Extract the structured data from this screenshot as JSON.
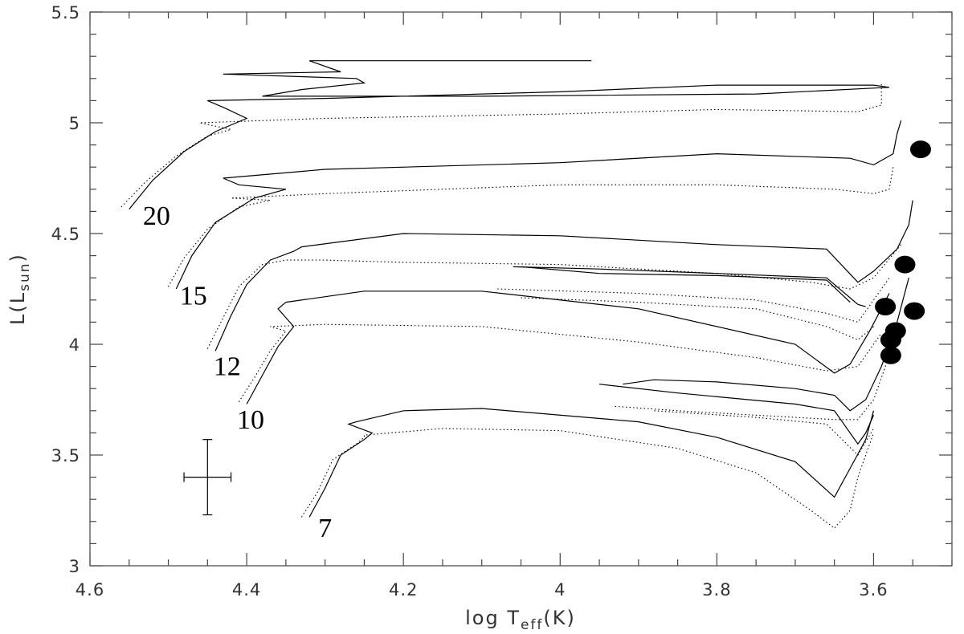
{
  "chart_data": {
    "type": "line",
    "title": "",
    "xlabel": {
      "prefix": "log T",
      "sub": "eff",
      "suffix": "(K)"
    },
    "ylabel": {
      "prefix": "L(L",
      "sub": "sun",
      "suffix": ")"
    },
    "xlim": [
      4.6,
      3.5
    ],
    "ylim": [
      3.0,
      5.5
    ],
    "x_ticks": [
      "4.6",
      "4.4",
      "4.2",
      "4",
      "3.8",
      "3.6"
    ],
    "y_ticks": [
      "3",
      "3.5",
      "4",
      "4.5",
      "5",
      "5.5"
    ],
    "grid": false,
    "legend": "none",
    "mass_labels": [
      {
        "text": "20",
        "x": 4.515,
        "y": 4.54
      },
      {
        "text": "15",
        "x": 4.468,
        "y": 4.18
      },
      {
        "text": "12",
        "x": 4.425,
        "y": 3.86
      },
      {
        "text": "10",
        "x": 4.395,
        "y": 3.62
      },
      {
        "text": "7",
        "x": 4.3,
        "y": 3.13
      }
    ],
    "error_bar": {
      "x": 4.45,
      "y": 3.4,
      "x_err": 0.03,
      "y_err": 0.17
    },
    "observed_stars": [
      {
        "x": 3.54,
        "y": 4.88
      },
      {
        "x": 3.56,
        "y": 4.36
      },
      {
        "x": 3.548,
        "y": 4.15
      },
      {
        "x": 3.585,
        "y": 4.17
      },
      {
        "x": 3.572,
        "y": 4.06
      },
      {
        "x": 3.578,
        "y": 4.02
      },
      {
        "x": 3.578,
        "y": 3.95
      }
    ],
    "series": [
      {
        "style": "solid",
        "points": [
          [
            4.55,
            4.61
          ],
          [
            4.52,
            4.74
          ],
          [
            4.48,
            4.87
          ],
          [
            4.44,
            4.96
          ],
          [
            4.4,
            5.02
          ],
          [
            4.43,
            5.07
          ],
          [
            4.45,
            5.1
          ],
          [
            4.3,
            5.11
          ],
          [
            4.0,
            5.14
          ],
          [
            3.8,
            5.17
          ],
          [
            3.6,
            5.17
          ],
          [
            3.58,
            5.16
          ],
          [
            3.75,
            5.13
          ],
          [
            4.1,
            5.12
          ],
          [
            4.38,
            5.12
          ],
          [
            4.33,
            5.15
          ],
          [
            4.25,
            5.18
          ],
          [
            4.26,
            5.2
          ],
          [
            4.43,
            5.22
          ],
          [
            4.28,
            5.23
          ],
          [
            4.32,
            5.28
          ],
          [
            4.2,
            5.28
          ],
          [
            3.96,
            5.28
          ]
        ]
      },
      {
        "style": "dotted",
        "points": [
          [
            4.56,
            4.62
          ],
          [
            4.53,
            4.73
          ],
          [
            4.49,
            4.85
          ],
          [
            4.45,
            4.94
          ],
          [
            4.42,
            4.97
          ],
          [
            4.46,
            5.0
          ],
          [
            4.3,
            5.02
          ],
          [
            4.0,
            5.04
          ],
          [
            3.8,
            5.06
          ],
          [
            3.62,
            5.05
          ],
          [
            3.59,
            5.08
          ],
          [
            3.59,
            5.18
          ]
        ]
      },
      {
        "style": "solid",
        "points": [
          [
            4.49,
            4.25
          ],
          [
            4.47,
            4.4
          ],
          [
            4.44,
            4.55
          ],
          [
            4.39,
            4.66
          ],
          [
            4.35,
            4.7
          ],
          [
            4.41,
            4.72
          ],
          [
            4.43,
            4.75
          ],
          [
            4.3,
            4.79
          ],
          [
            4.0,
            4.82
          ],
          [
            3.8,
            4.86
          ],
          [
            3.63,
            4.84
          ],
          [
            3.6,
            4.81
          ],
          [
            3.575,
            4.86
          ],
          [
            3.57,
            4.95
          ],
          [
            3.565,
            5.01
          ]
        ]
      },
      {
        "style": "dotted",
        "points": [
          [
            4.5,
            4.26
          ],
          [
            4.48,
            4.39
          ],
          [
            4.45,
            4.52
          ],
          [
            4.41,
            4.62
          ],
          [
            4.37,
            4.65
          ],
          [
            4.42,
            4.66
          ],
          [
            4.3,
            4.68
          ],
          [
            4.0,
            4.72
          ],
          [
            3.8,
            4.72
          ],
          [
            3.65,
            4.7
          ],
          [
            3.6,
            4.68
          ],
          [
            3.58,
            4.7
          ],
          [
            3.575,
            4.8
          ]
        ]
      },
      {
        "style": "solid",
        "points": [
          [
            4.44,
            3.97
          ],
          [
            4.42,
            4.13
          ],
          [
            4.4,
            4.27
          ],
          [
            4.37,
            4.38
          ],
          [
            4.34,
            4.42
          ],
          [
            4.33,
            4.44
          ],
          [
            4.2,
            4.5
          ],
          [
            4.0,
            4.49
          ],
          [
            3.8,
            4.45
          ],
          [
            3.66,
            4.43
          ],
          [
            3.62,
            4.28
          ],
          [
            3.6,
            4.33
          ],
          [
            3.57,
            4.43
          ],
          [
            3.555,
            4.54
          ],
          [
            3.55,
            4.65
          ]
        ]
      },
      {
        "style": "solid",
        "points": [
          [
            4.06,
            4.35
          ],
          [
            3.95,
            4.34
          ],
          [
            3.8,
            4.32
          ],
          [
            3.66,
            4.3
          ],
          [
            3.62,
            4.18
          ],
          [
            3.61,
            4.17
          ]
        ]
      },
      {
        "style": "solid",
        "points": [
          [
            4.05,
            4.35
          ],
          [
            3.95,
            4.32
          ],
          [
            3.8,
            4.31
          ],
          [
            3.66,
            4.29
          ],
          [
            3.63,
            4.19
          ]
        ]
      },
      {
        "style": "dotted",
        "points": [
          [
            4.45,
            3.98
          ],
          [
            4.43,
            4.12
          ],
          [
            4.41,
            4.26
          ],
          [
            4.38,
            4.36
          ],
          [
            4.35,
            4.38
          ],
          [
            4.3,
            4.38
          ],
          [
            4.2,
            4.37
          ],
          [
            4.0,
            4.36
          ],
          [
            3.8,
            4.32
          ],
          [
            3.68,
            4.28
          ],
          [
            3.63,
            4.25
          ],
          [
            3.6,
            4.3
          ],
          [
            3.565,
            4.45
          ]
        ]
      },
      {
        "style": "dotted",
        "points": [
          [
            4.08,
            4.25
          ],
          [
            3.9,
            4.23
          ],
          [
            3.75,
            4.2
          ],
          [
            3.66,
            4.14
          ],
          [
            3.62,
            4.1
          ],
          [
            3.6,
            4.2
          ],
          [
            3.58,
            4.3
          ]
        ]
      },
      {
        "style": "solid",
        "points": [
          [
            4.4,
            3.73
          ],
          [
            4.38,
            3.86
          ],
          [
            4.36,
            3.99
          ],
          [
            4.34,
            4.08
          ],
          [
            4.35,
            4.12
          ],
          [
            4.36,
            4.16
          ],
          [
            4.35,
            4.19
          ],
          [
            4.25,
            4.24
          ],
          [
            4.1,
            4.24
          ],
          [
            3.9,
            4.16
          ],
          [
            3.7,
            4.0
          ],
          [
            3.65,
            3.87
          ],
          [
            3.63,
            3.91
          ],
          [
            3.605,
            4.06
          ],
          [
            3.58,
            4.23
          ]
        ]
      },
      {
        "style": "dotted",
        "points": [
          [
            4.41,
            3.74
          ],
          [
            4.39,
            3.85
          ],
          [
            4.37,
            3.97
          ],
          [
            4.35,
            4.06
          ],
          [
            4.37,
            4.08
          ],
          [
            4.3,
            4.09
          ],
          [
            4.1,
            4.08
          ],
          [
            3.9,
            4.01
          ],
          [
            3.75,
            3.94
          ],
          [
            3.66,
            3.88
          ],
          [
            3.62,
            3.9
          ],
          [
            3.59,
            4.05
          ]
        ]
      },
      {
        "style": "dotted",
        "points": [
          [
            4.05,
            4.21
          ],
          [
            3.9,
            4.19
          ],
          [
            3.75,
            4.16
          ],
          [
            3.66,
            4.08
          ],
          [
            3.62,
            4.02
          ],
          [
            3.6,
            4.08
          ]
        ]
      },
      {
        "style": "solid",
        "points": [
          [
            4.32,
            3.22
          ],
          [
            4.3,
            3.35
          ],
          [
            4.28,
            3.5
          ],
          [
            4.25,
            3.57
          ],
          [
            4.24,
            3.6
          ],
          [
            4.27,
            3.64
          ],
          [
            4.26,
            3.65
          ],
          [
            4.2,
            3.7
          ],
          [
            4.1,
            3.71
          ],
          [
            3.9,
            3.65
          ],
          [
            3.8,
            3.58
          ],
          [
            3.7,
            3.47
          ],
          [
            3.65,
            3.31
          ],
          [
            3.63,
            3.44
          ],
          [
            3.61,
            3.57
          ],
          [
            3.6,
            3.7
          ]
        ]
      },
      {
        "style": "dotted",
        "points": [
          [
            4.33,
            3.22
          ],
          [
            4.31,
            3.33
          ],
          [
            4.29,
            3.48
          ],
          [
            4.26,
            3.55
          ],
          [
            4.25,
            3.58
          ],
          [
            4.25,
            3.59
          ],
          [
            4.15,
            3.62
          ],
          [
            4.0,
            3.61
          ],
          [
            3.85,
            3.53
          ],
          [
            3.75,
            3.42
          ],
          [
            3.68,
            3.25
          ],
          [
            3.65,
            3.17
          ],
          [
            3.63,
            3.25
          ],
          [
            3.62,
            3.4
          ],
          [
            3.6,
            3.6
          ]
        ]
      },
      {
        "style": "solid",
        "points": [
          [
            3.92,
            3.82
          ],
          [
            3.88,
            3.84
          ],
          [
            3.8,
            3.83
          ],
          [
            3.7,
            3.8
          ],
          [
            3.65,
            3.77
          ],
          [
            3.63,
            3.7
          ],
          [
            3.61,
            3.75
          ],
          [
            3.59,
            3.9
          ],
          [
            3.57,
            4.1
          ],
          [
            3.555,
            4.3
          ]
        ]
      },
      {
        "style": "solid",
        "points": [
          [
            3.95,
            3.82
          ],
          [
            3.85,
            3.78
          ],
          [
            3.7,
            3.73
          ],
          [
            3.65,
            3.7
          ],
          [
            3.62,
            3.55
          ],
          [
            3.61,
            3.6
          ],
          [
            3.6,
            3.68
          ]
        ]
      },
      {
        "style": "dotted",
        "points": [
          [
            3.93,
            3.72
          ],
          [
            3.85,
            3.7
          ],
          [
            3.7,
            3.67
          ],
          [
            3.65,
            3.66
          ],
          [
            3.62,
            3.66
          ],
          [
            3.6,
            3.75
          ],
          [
            3.58,
            3.95
          ]
        ]
      },
      {
        "style": "dotted",
        "points": [
          [
            3.88,
            3.7
          ],
          [
            3.75,
            3.67
          ],
          [
            3.66,
            3.64
          ],
          [
            3.62,
            3.5
          ],
          [
            3.6,
            3.62
          ]
        ]
      }
    ]
  }
}
